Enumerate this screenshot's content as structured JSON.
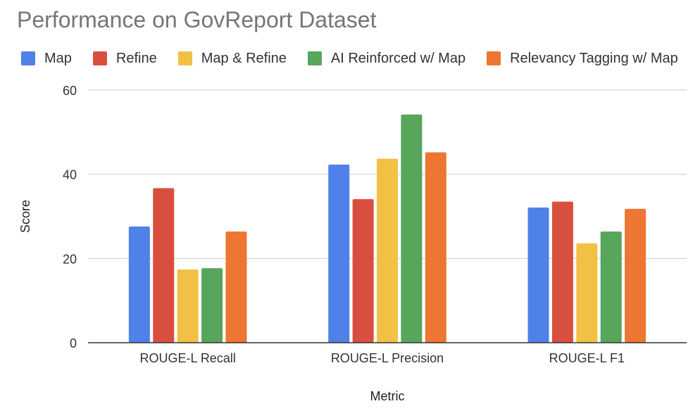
{
  "chart_data": {
    "type": "bar",
    "title": "Performance on GovReport Dataset",
    "xlabel": "Metric",
    "ylabel": "Score",
    "ylim": [
      0,
      60
    ],
    "yticks": [
      0,
      20,
      40,
      60
    ],
    "grid": true,
    "legend_position": "top-left",
    "categories": [
      "ROUGE-L Recall",
      "ROUGE-L Precision",
      "ROUGE-L F1"
    ],
    "series": [
      {
        "name": "Map",
        "color": "#4f81e8",
        "values": [
          27.6,
          42.3,
          32.1
        ]
      },
      {
        "name": "Refine",
        "color": "#d94f3f",
        "values": [
          36.7,
          34.1,
          33.5
        ]
      },
      {
        "name": "Map & Refine",
        "color": "#f2c044",
        "values": [
          17.4,
          43.7,
          23.6
        ]
      },
      {
        "name": "AI Reinforced w/ Map",
        "color": "#58a55c",
        "values": [
          17.7,
          54.2,
          26.4
        ]
      },
      {
        "name": "Relevancy Tagging w/ Map",
        "color": "#ec7632",
        "values": [
          26.4,
          45.2,
          31.8
        ]
      }
    ]
  }
}
